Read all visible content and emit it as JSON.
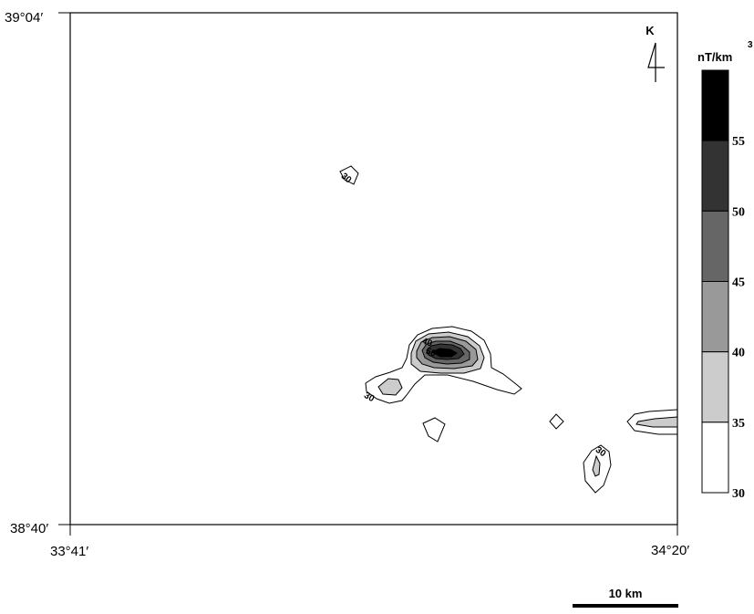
{
  "map": {
    "corner_labels": {
      "top_left_lat": "39°04′",
      "bottom_left_lat": "38°40′",
      "bottom_left_lon": "33°41′",
      "bottom_right_lon": "34°20′"
    },
    "north_label": "K",
    "panel_number": "4",
    "scale_bar_label": "10 km",
    "contour_labels": [
      "30",
      "30",
      "40",
      "50",
      "30"
    ]
  },
  "legend": {
    "unit_label": "nT/km",
    "unit_superscript": "3",
    "levels": [
      {
        "value": "55",
        "color": "#000000"
      },
      {
        "value": "50",
        "color": "#333333"
      },
      {
        "value": "45",
        "color": "#666666"
      },
      {
        "value": "40",
        "color": "#999999"
      },
      {
        "value": "35",
        "color": "#cccccc"
      },
      {
        "value": "30",
        "color": "#ffffff"
      }
    ]
  }
}
